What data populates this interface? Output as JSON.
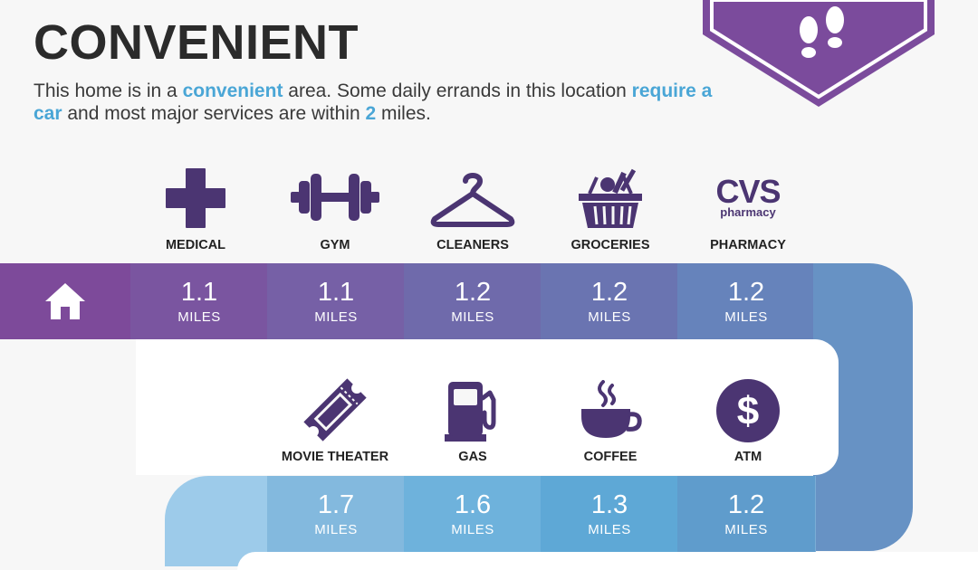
{
  "header": {
    "title": "CONVENIENT",
    "desc_1": "This home is in a ",
    "desc_hl_1": "convenient",
    "desc_2": " area. Some daily errands in this location ",
    "desc_hl_2": "require a car",
    "desc_3": " and most major services are within ",
    "desc_hl_3": "2",
    "desc_4": " miles."
  },
  "badge": {
    "icon": "footprints-icon",
    "color": "#7b4b9c"
  },
  "home": {
    "icon": "home-icon",
    "color": "#7d4a9a"
  },
  "unit": "MILES",
  "row1": [
    {
      "key": "medical",
      "label": "MEDICAL",
      "distance": "1.1",
      "icon": "medical-cross-icon",
      "color": "#7a55a0"
    },
    {
      "key": "gym",
      "label": "GYM",
      "distance": "1.1",
      "icon": "dumbbell-icon",
      "color": "#7660a6"
    },
    {
      "key": "cleaners",
      "label": "CLEANERS",
      "distance": "1.2",
      "icon": "hanger-icon",
      "color": "#6f6aab"
    },
    {
      "key": "groceries",
      "label": "GROCERIES",
      "distance": "1.2",
      "icon": "grocery-basket-icon",
      "color": "#6a74b1"
    },
    {
      "key": "pharmacy",
      "label": "PHARMACY",
      "distance": "1.2",
      "icon": "cvs-pharmacy-logo",
      "logo_text": "CVS",
      "logo_sub": "pharmacy",
      "color": "#6683bb"
    }
  ],
  "row2": [
    {
      "key": "movie-theater",
      "label": "MOVIE THEATER",
      "distance": "1.7",
      "icon": "ticket-icon",
      "color": "#83b9de"
    },
    {
      "key": "gas",
      "label": "GAS",
      "distance": "1.6",
      "icon": "gas-pump-icon",
      "color": "#6eb2dc"
    },
    {
      "key": "coffee",
      "label": "COFFEE",
      "distance": "1.3",
      "icon": "coffee-cup-icon",
      "color": "#5ea8d6"
    },
    {
      "key": "atm",
      "label": "ATM",
      "distance": "1.2",
      "icon": "dollar-icon",
      "color": "#5f9ccc"
    }
  ],
  "road_colors": {
    "turn": "#6792c4",
    "row1_end": "#6790c2",
    "row2_left": "#9dcbea"
  },
  "icon_color": "#4b3572"
}
